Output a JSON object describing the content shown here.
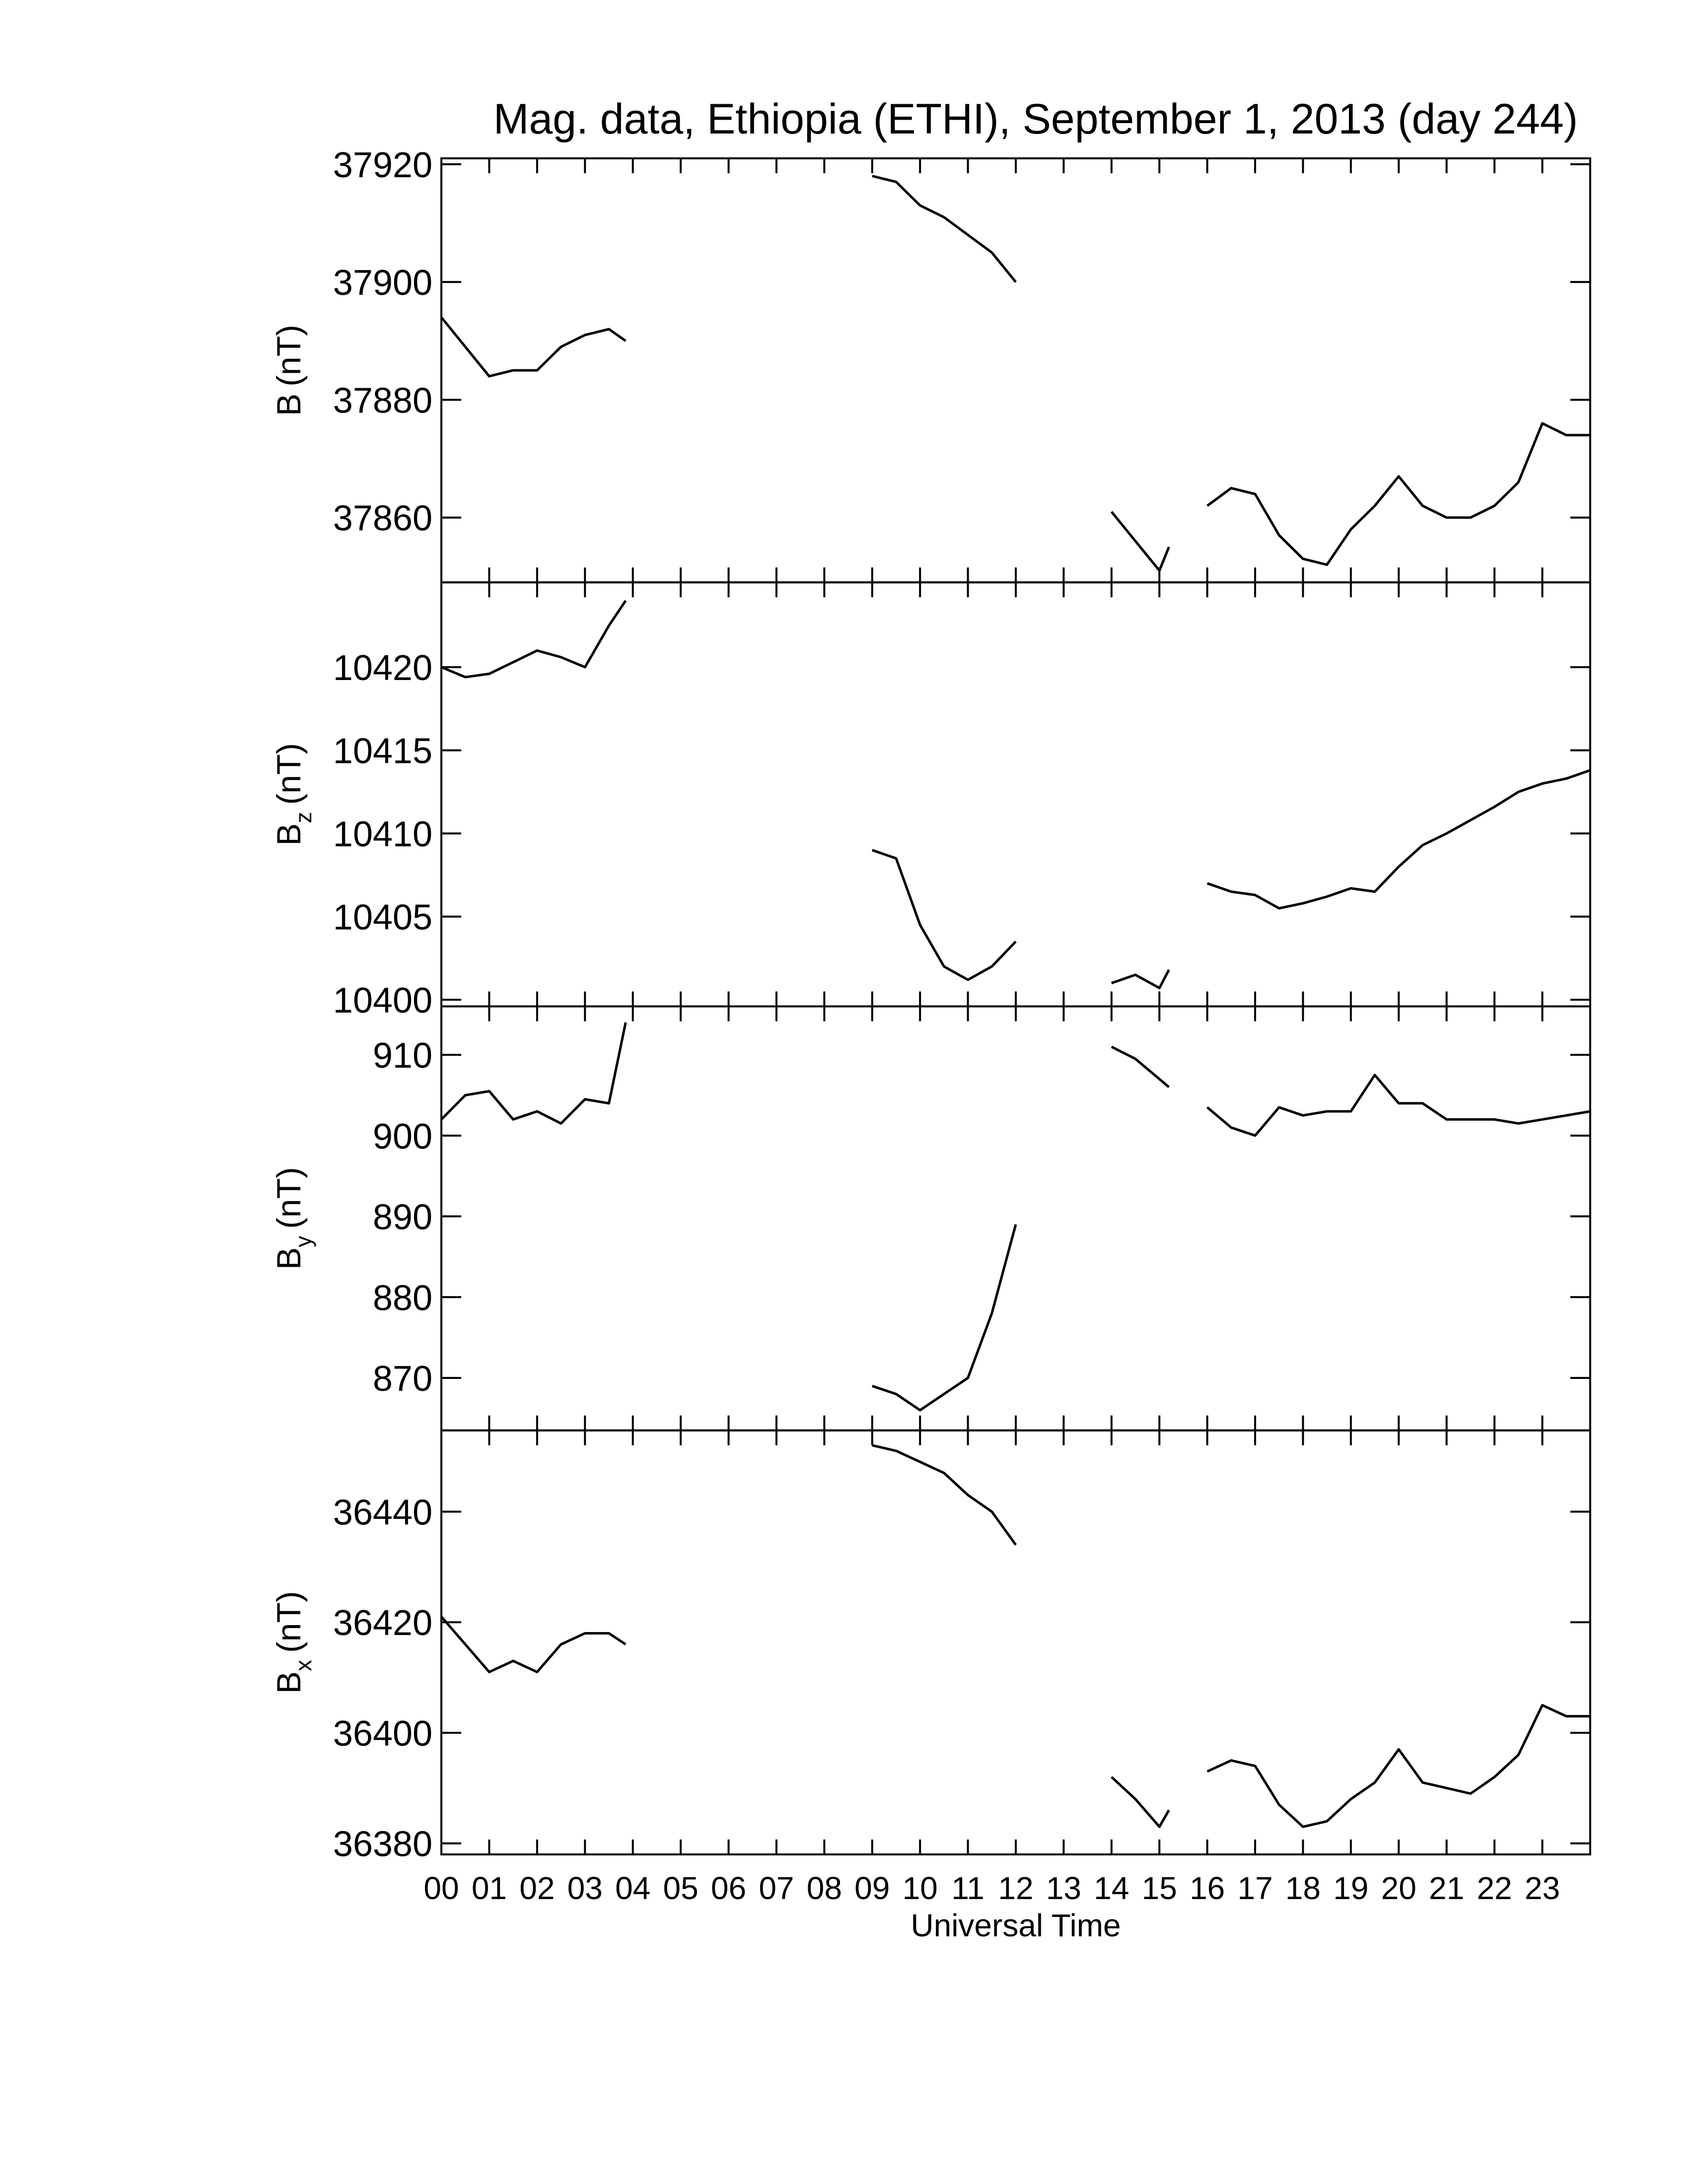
{
  "chart_data": [
    {
      "type": "line",
      "title": "Mag. data, Ethiopia (ETHI), September 1, 2013 (day 244)",
      "ylabel": {
        "main": "B",
        "unit": "(nT)"
      },
      "color": "#000000",
      "x": [
        0,
        0.5,
        1,
        1.5,
        2,
        2.5,
        3,
        3.5,
        3.85,
        4,
        9,
        9.5,
        10,
        10.5,
        11,
        11.5,
        12,
        13,
        14,
        14.5,
        15,
        15.2,
        15.5,
        16,
        16.5,
        17,
        17.5,
        18,
        18.5,
        19,
        19.5,
        20,
        20.5,
        21,
        21.5,
        22,
        22.5,
        23,
        23.5,
        24
      ],
      "values": [
        37894,
        37889,
        37884,
        37885,
        37885,
        37889,
        37891,
        37892,
        37890,
        null,
        37918,
        37917,
        37913,
        37911,
        37908,
        37905,
        37900,
        null,
        37861,
        37856,
        37851,
        37855,
        null,
        37862,
        37865,
        37864,
        37857,
        37853,
        37852,
        37858,
        37862,
        37867,
        37862,
        37860,
        37860,
        37862,
        37866,
        37876,
        37874,
        37874
      ],
      "xlim": [
        0,
        24
      ],
      "ylim": [
        37849,
        37921
      ],
      "yticks": [
        37860,
        37880,
        37900,
        37920
      ]
    },
    {
      "type": "line",
      "ylabel": {
        "main": "B",
        "sub": "z",
        "unit": "(nT)"
      },
      "color": "#000000",
      "x": [
        0,
        0.5,
        1,
        1.5,
        2,
        2.5,
        3,
        3.5,
        3.85,
        4,
        9,
        9.5,
        10,
        10.5,
        11,
        11.5,
        12,
        13,
        14,
        14.5,
        15,
        15.2,
        15.5,
        16,
        16.5,
        17,
        17.5,
        18,
        18.5,
        19,
        19.5,
        20,
        20.5,
        21,
        21.5,
        22,
        22.5,
        23,
        23.5,
        24
      ],
      "values": [
        10420,
        10419.4,
        10419.6,
        10420.3,
        10421,
        10420.6,
        10420,
        10422.5,
        10424,
        null,
        10409,
        10408.5,
        10404.5,
        10402,
        10401.2,
        10402,
        10403.5,
        null,
        10401,
        10401.5,
        10400.7,
        10401.8,
        null,
        10407,
        10406.5,
        10406.3,
        10405.5,
        10405.8,
        10406.2,
        10406.7,
        10406.5,
        10408,
        10409.3,
        10410,
        10410.8,
        10411.6,
        10412.5,
        10413,
        10413.3,
        10413.8
      ],
      "xlim": [
        0,
        24
      ],
      "ylim": [
        10399.6,
        10425.1
      ],
      "yticks": [
        10400,
        10405,
        10410,
        10415,
        10420
      ]
    },
    {
      "type": "line",
      "ylabel": {
        "main": "B",
        "sub": "y",
        "unit": "(nT)"
      },
      "color": "#000000",
      "x": [
        0,
        0.5,
        1,
        1.5,
        2,
        2.5,
        3,
        3.5,
        3.85,
        4,
        9,
        9.5,
        10,
        10.5,
        11,
        11.5,
        12,
        13,
        14,
        14.5,
        15,
        15.2,
        15.5,
        16,
        16.5,
        17,
        17.5,
        18,
        18.5,
        19,
        19.5,
        20,
        20.5,
        21,
        21.5,
        22,
        22.5,
        23,
        23.5,
        24
      ],
      "values": [
        902,
        905,
        905.5,
        902,
        903,
        901.5,
        904.5,
        904,
        914,
        null,
        869,
        868,
        866,
        868,
        870,
        878,
        889,
        null,
        911,
        909.5,
        907,
        906,
        null,
        903.5,
        901,
        900,
        903.5,
        902.5,
        903,
        903,
        907.5,
        904,
        904,
        902,
        902,
        902,
        901.5,
        902,
        902.5,
        903
      ],
      "xlim": [
        0,
        24
      ],
      "ylim": [
        863.5,
        916
      ],
      "yticks": [
        870,
        880,
        890,
        900,
        910
      ]
    },
    {
      "type": "line",
      "ylabel": {
        "main": "B",
        "sub": "x",
        "unit": "(nT)"
      },
      "xlabel": "Universal Time",
      "color": "#000000",
      "x": [
        0,
        0.5,
        1,
        1.5,
        2,
        2.5,
        3,
        3.5,
        3.85,
        4,
        9,
        9.5,
        10,
        10.5,
        11,
        11.5,
        12,
        13,
        14,
        14.5,
        15,
        15.2,
        15.5,
        16,
        16.5,
        17,
        17.5,
        18,
        18.5,
        19,
        19.5,
        20,
        20.5,
        21,
        21.5,
        22,
        22.5,
        23,
        23.5,
        24
      ],
      "values": [
        36421,
        36416,
        36411,
        36413,
        36411,
        36416,
        36418,
        36418,
        36416,
        null,
        36452,
        36451,
        36449,
        36447,
        36443,
        36440,
        36434,
        null,
        36392,
        36388,
        36383,
        36386,
        null,
        36393,
        36395,
        36394,
        36387,
        36383,
        36384,
        36388,
        36391,
        36397,
        36391,
        36390,
        36389,
        36392,
        36396,
        36405,
        36403,
        36403
      ],
      "xlim": [
        0,
        24
      ],
      "ylim": [
        36378,
        36454.7
      ],
      "yticks": [
        36380,
        36400,
        36420,
        36440
      ],
      "xticks": [
        {
          "value": 0,
          "label": "00"
        },
        {
          "value": 1,
          "label": "01"
        },
        {
          "value": 2,
          "label": "02"
        },
        {
          "value": 3,
          "label": "03"
        },
        {
          "value": 4,
          "label": "04"
        },
        {
          "value": 5,
          "label": "05"
        },
        {
          "value": 6,
          "label": "06"
        },
        {
          "value": 7,
          "label": "07"
        },
        {
          "value": 8,
          "label": "08"
        },
        {
          "value": 9,
          "label": "09"
        },
        {
          "value": 10,
          "label": "10"
        },
        {
          "value": 11,
          "label": "11"
        },
        {
          "value": 12,
          "label": "12"
        },
        {
          "value": 13,
          "label": "13"
        },
        {
          "value": 14,
          "label": "14"
        },
        {
          "value": 15,
          "label": "15"
        },
        {
          "value": 16,
          "label": "16"
        },
        {
          "value": 17,
          "label": "17"
        },
        {
          "value": 18,
          "label": "18"
        },
        {
          "value": 19,
          "label": "19"
        },
        {
          "value": 20,
          "label": "20"
        },
        {
          "value": 21,
          "label": "21"
        },
        {
          "value": 22,
          "label": "22"
        },
        {
          "value": 23,
          "label": "23"
        }
      ]
    }
  ]
}
